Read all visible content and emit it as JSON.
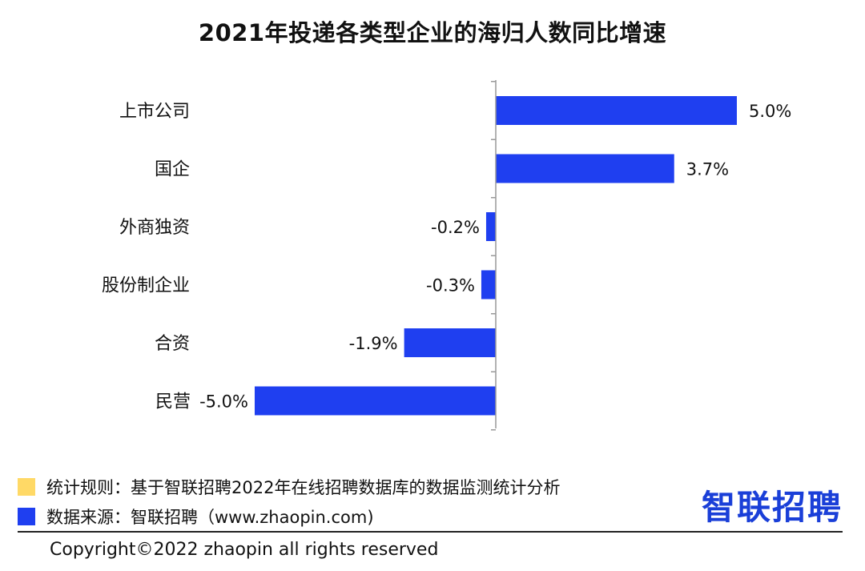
{
  "colors": {
    "bar": "#1f3ff0",
    "rule_marker": "#ffd966",
    "source_marker": "#1f3ff0",
    "logo": "#1a3fd8"
  },
  "chart_data": {
    "type": "bar",
    "orientation": "horizontal",
    "title": "2021年投递各类型企业的海归人数同比增速",
    "categories": [
      "上市公司",
      "国企",
      "外商独资",
      "股份制企业",
      "合资",
      "民营"
    ],
    "values": [
      5.0,
      3.7,
      -0.2,
      -0.3,
      -1.9,
      -5.0
    ],
    "value_labels": [
      "5.0%",
      "3.7%",
      "-0.2%",
      "-0.3%",
      "-1.9%",
      "-5.0%"
    ],
    "unit": "%",
    "xlim": [
      -5.0,
      5.0
    ],
    "grid": false,
    "legend": "none"
  },
  "footer": {
    "rule": "统计规则：基于智联招聘2022年在线招聘数据库的数据监测统计分析",
    "source": "数据来源：智联招聘（www.zhaopin.com)",
    "logo_text": "智联招聘",
    "copyright": "Copyright©2022 zhaopin all rights reserved"
  }
}
